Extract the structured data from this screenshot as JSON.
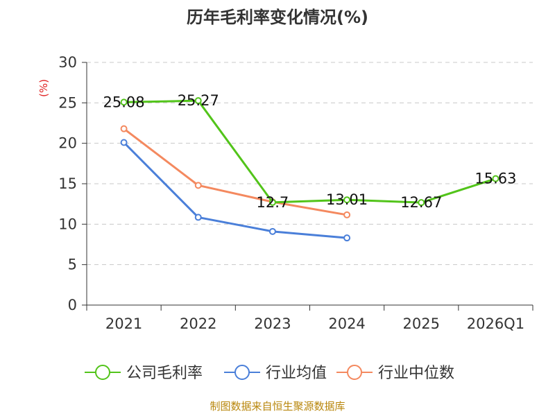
{
  "chart_data": {
    "type": "line",
    "title": "历年毛利率变化情况(%)",
    "ylabel": "(%)",
    "xlabel": "",
    "categories": [
      "2021",
      "2022",
      "2023",
      "2024",
      "2025",
      "2026Q1"
    ],
    "ylim": [
      0,
      30
    ],
    "yticks": [
      0,
      5,
      10,
      15,
      20,
      25,
      30
    ],
    "grid": true,
    "legend_position": "bottom",
    "series": [
      {
        "name": "公司毛利率",
        "color": "#52c41a",
        "values": [
          25.08,
          25.27,
          12.7,
          13.01,
          12.67,
          15.63
        ],
        "labels": [
          "25.08",
          "25.27",
          "12.7",
          "13.01",
          "12.67",
          "15.63"
        ]
      },
      {
        "name": "行业均值",
        "color": "#4a7fd9",
        "values": [
          20.1,
          10.85,
          9.1,
          8.3,
          null,
          null
        ]
      },
      {
        "name": "行业中位数",
        "color": "#f4895f",
        "values": [
          21.8,
          14.8,
          12.75,
          11.15,
          null,
          null
        ]
      }
    ]
  },
  "source": "制图数据来自恒生聚源数据库"
}
